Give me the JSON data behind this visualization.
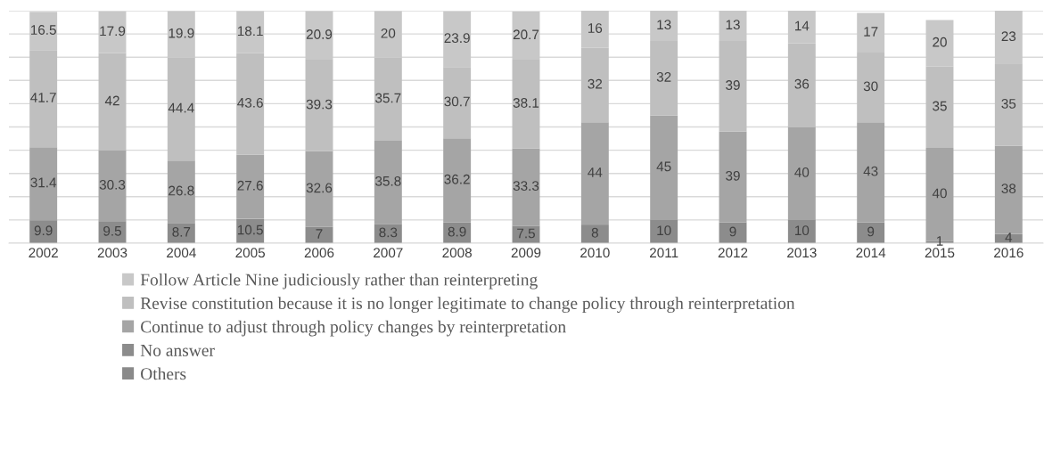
{
  "chart_data": {
    "type": "bar",
    "stacked": true,
    "categories": [
      "2002",
      "2003",
      "2004",
      "2005",
      "2006",
      "2007",
      "2008",
      "2009",
      "2010",
      "2011",
      "2012",
      "2013",
      "2014",
      "2015",
      "2016"
    ],
    "series": [
      {
        "name": "Others",
        "color": "#8a8a8a",
        "values": [
          null,
          null,
          null,
          null,
          null,
          null,
          null,
          null,
          null,
          null,
          null,
          null,
          null,
          null,
          null
        ]
      },
      {
        "name": "No answer",
        "color": "#8c8c8c",
        "values": [
          9.9,
          9.5,
          8.7,
          10.5,
          7,
          8.3,
          8.9,
          7.5,
          8,
          10,
          9,
          10,
          9,
          1,
          4
        ]
      },
      {
        "name": "Continue to adjust through policy changes by reinterpretation",
        "color": "#a5a5a5",
        "values": [
          31.4,
          30.3,
          26.8,
          27.6,
          32.6,
          35.8,
          36.2,
          33.3,
          44,
          45,
          39,
          40,
          43,
          40,
          38
        ]
      },
      {
        "name": "Revise constitution because it is no longer legitimate to change policy through reinterpretation",
        "color": "#bfbfbf",
        "values": [
          41.7,
          42,
          44.4,
          43.6,
          39.3,
          35.7,
          30.7,
          38.1,
          32,
          32,
          39,
          36,
          30,
          35,
          35
        ]
      },
      {
        "name": "Follow Article Nine judiciously rather than reinterpreting",
        "color": "#c8c8c8",
        "values": [
          16.5,
          17.9,
          19.9,
          18.1,
          20.9,
          20,
          23.9,
          20.7,
          16,
          13,
          13,
          14,
          17,
          20,
          23
        ]
      }
    ],
    "ylim": [
      0,
      100
    ],
    "yticks": [
      {
        "value": 0,
        "label": null
      },
      {
        "value": 10,
        "label": null
      },
      {
        "value": 20,
        "label": null
      },
      {
        "value": 30,
        "label": null
      },
      {
        "value": 40,
        "label": null
      },
      {
        "value": 50,
        "label": null
      },
      {
        "value": 60,
        "label": null
      },
      {
        "value": 70,
        "label": null
      },
      {
        "value": 80,
        "label": null
      },
      {
        "value": 90,
        "label": null
      },
      {
        "value": 100,
        "label": null
      }
    ],
    "tick_labels": "x",
    "grid": "y",
    "legend": "bottom",
    "data_labels": true
  }
}
